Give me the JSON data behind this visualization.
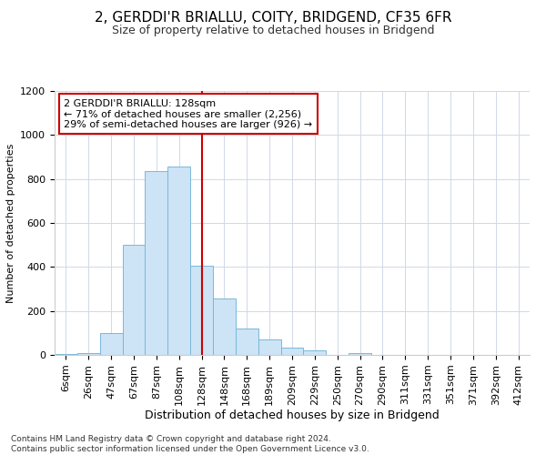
{
  "title": "2, GERDDI'R BRIALLU, COITY, BRIDGEND, CF35 6FR",
  "subtitle": "Size of property relative to detached houses in Bridgend",
  "xlabel": "Distribution of detached houses by size in Bridgend",
  "ylabel": "Number of detached properties",
  "footer_line1": "Contains HM Land Registry data © Crown copyright and database right 2024.",
  "footer_line2": "Contains public sector information licensed under the Open Government Licence v3.0.",
  "annotation_line1": "2 GERDDI'R BRIALLU: 128sqm",
  "annotation_line2": "← 71% of detached houses are smaller (2,256)",
  "annotation_line3": "29% of semi-detached houses are larger (926) →",
  "bar_labels": [
    "6sqm",
    "26sqm",
    "47sqm",
    "67sqm",
    "87sqm",
    "108sqm",
    "128sqm",
    "148sqm",
    "168sqm",
    "189sqm",
    "209sqm",
    "229sqm",
    "250sqm",
    "270sqm",
    "290sqm",
    "311sqm",
    "331sqm",
    "351sqm",
    "371sqm",
    "392sqm",
    "412sqm"
  ],
  "bar_values": [
    5,
    10,
    100,
    500,
    835,
    855,
    405,
    255,
    120,
    70,
    35,
    20,
    0,
    10,
    0,
    0,
    0,
    0,
    0,
    0,
    0
  ],
  "bar_color": "#cce4f5",
  "bar_edge_color": "#7ab8d9",
  "vline_x_idx": 6,
  "vline_color": "#cc0000",
  "ylim": [
    0,
    1200
  ],
  "yticks": [
    0,
    200,
    400,
    600,
    800,
    1000,
    1200
  ],
  "bg_color": "#ffffff",
  "grid_color": "#d0d8e8",
  "annotation_box_color": "#cc0000",
  "annotation_box_fill": "#ffffff",
  "title_fontsize": 11,
  "subtitle_fontsize": 9,
  "ylabel_fontsize": 8,
  "xlabel_fontsize": 9,
  "tick_fontsize": 8,
  "annot_fontsize": 8,
  "footer_fontsize": 6.5
}
